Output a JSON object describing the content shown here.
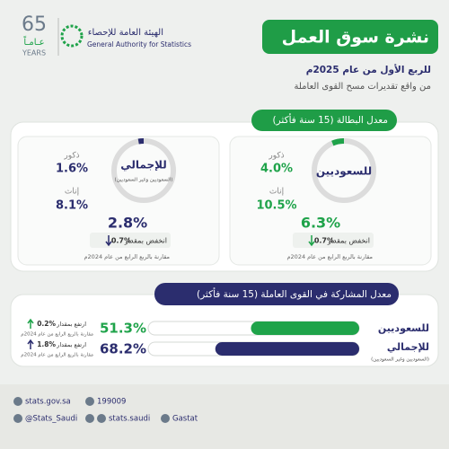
{
  "logo": {
    "years_number": "65",
    "years_ar": "عـامـاً",
    "years_en": "YEARS"
  },
  "header": {
    "org_ar": "الهيئة العامة للإحصاء",
    "org_en": "General Authority for Statistics",
    "title": "نشرة سوق العمل",
    "period": "للربع الأول من عام 2025م",
    "source": "من واقع تقديرات مسح القوى العاملة"
  },
  "unemployment": {
    "title": "معدل البطالة (15 سنة فأكثر)",
    "groups": [
      {
        "label": "للسعوديين",
        "male_label": "ذكور",
        "male": "4.0%",
        "female_label": "إناث",
        "female": "10.5%",
        "rate": {
          "value": 6.3,
          "label": "6.3%"
        },
        "change_text": "انخفض بمقدار",
        "change": "0.7%",
        "comparison": "مقارنة بالربع الرابع من عام 2024م"
      },
      {
        "label": "للإجمالي",
        "note": "(السعوديين وغير السعوديين)",
        "male_label": "ذكور",
        "male": "1.6%",
        "female_label": "إناث",
        "female": "8.1%",
        "rate": {
          "value": 2.8,
          "label": "2.8%"
        },
        "change_text": "انخفض بمقدار",
        "change": "0.7%",
        "comparison": "مقارنة بالربع الرابع من عام 2024م"
      }
    ]
  },
  "participation": {
    "title": "معدل المشاركة في القوى العاملة (15 سنة فأكثر)",
    "rows": [
      {
        "label": "للسعوديين",
        "rate": {
          "value": 51.3,
          "label": "51.3%"
        },
        "change_text": "ارتفع بمقدار",
        "change": "0.2%",
        "comparison": "مقارنة بالربع الرابع من عام 2024م"
      },
      {
        "label": "للإجمالي",
        "note": "(السعوديين وغير السعوديين)",
        "rate": {
          "value": 68.2,
          "label": "68.2%"
        },
        "change_text": "ارتفع بمقدار",
        "change": "1.8%",
        "comparison": "مقارنة بالربع الرابع من عام 2024م"
      }
    ]
  },
  "footer": {
    "website": "stats.gov.sa",
    "phone": "199009",
    "twitter": "@Stats_Saudi",
    "facebook": "stats.saudi",
    "linkedin": "Gastat"
  }
}
